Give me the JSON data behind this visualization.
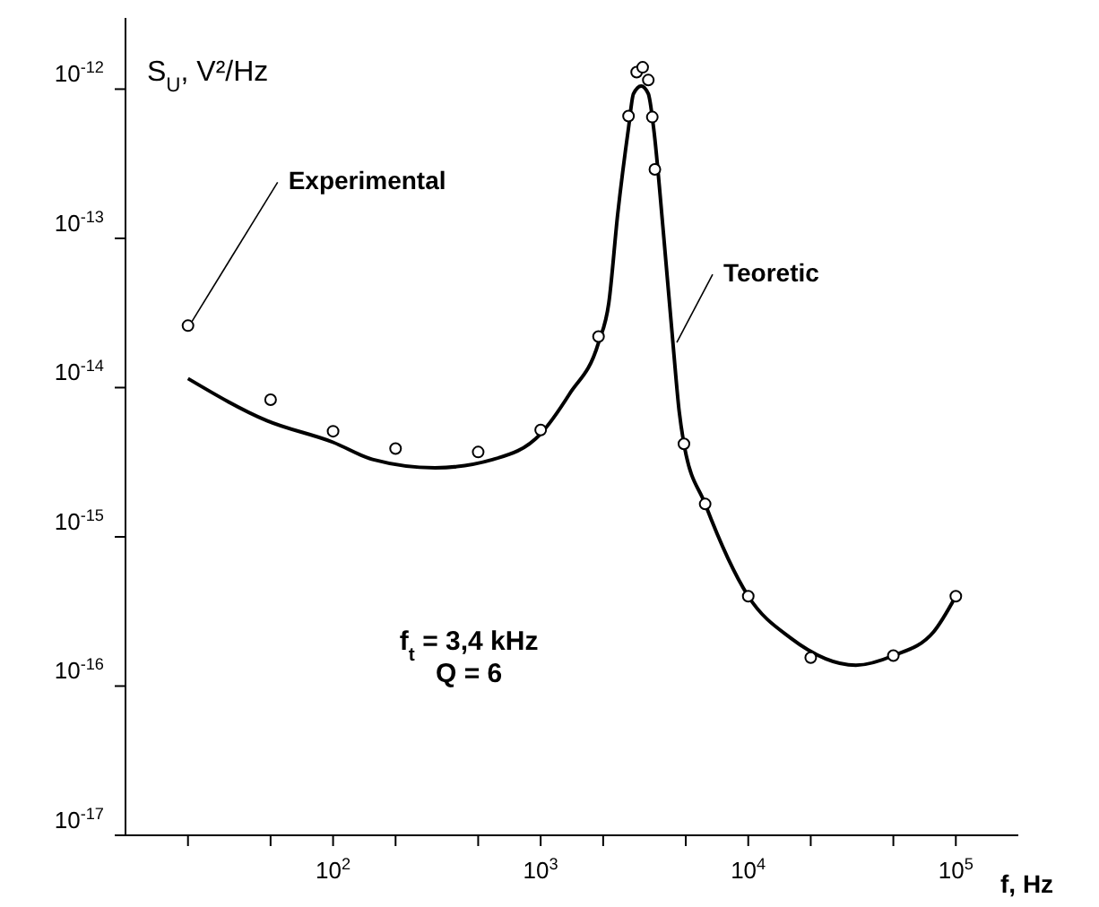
{
  "chart_data": {
    "type": "line",
    "ylabel": "S$_{U}$, V²/Hz",
    "xlabel": "f, Hz",
    "log": "xy",
    "xlim": [
      10,
      200000
    ],
    "ylim": [
      1e-17,
      3e-12
    ],
    "xticks": [
      {
        "value": 20,
        "label": null
      },
      {
        "value": 50,
        "label": null
      },
      {
        "value": 100,
        "label": "10$^{2}$"
      },
      {
        "value": 200,
        "label": null
      },
      {
        "value": 500,
        "label": null
      },
      {
        "value": 1000,
        "label": "10$^{3}$"
      },
      {
        "value": 2000,
        "label": null
      },
      {
        "value": 5000,
        "label": null
      },
      {
        "value": 10000,
        "label": "10$^{4}$"
      },
      {
        "value": 20000,
        "label": null
      },
      {
        "value": 50000,
        "label": null
      },
      {
        "value": 100000,
        "label": "10$^{5}$"
      }
    ],
    "yticks": [
      {
        "value": 1e-17,
        "label": "10$^{-17}$"
      },
      {
        "value": 1e-16,
        "label": "10$^{-16}$"
      },
      {
        "value": 1e-15,
        "label": "10$^{-15}$"
      },
      {
        "value": 1e-14,
        "label": "10$^{-14}$"
      },
      {
        "value": 1e-13,
        "label": "10$^{-13}$"
      },
      {
        "value": 1e-12,
        "label": "10$^{-12}$"
      }
    ],
    "series": [
      {
        "name": "Experimental",
        "type": "scatter",
        "marker": "circle",
        "color": "#000000",
        "x": [
          20,
          50,
          100,
          200,
          500,
          1000,
          1900,
          2650,
          2900,
          3100,
          3300,
          3450,
          3550,
          4900,
          6200,
          10000,
          20000,
          50000,
          100000
        ],
        "values": [
          2.6e-14,
          8.3e-15,
          5.1e-15,
          3.9e-15,
          3.7e-15,
          5.2e-15,
          2.2e-14,
          6.6e-13,
          1.3e-12,
          1.4e-12,
          1.15e-12,
          6.5e-13,
          2.9e-13,
          4.2e-15,
          1.66e-15,
          4e-16,
          1.55e-16,
          1.6e-16,
          4e-16
        ]
      },
      {
        "name": "Teoretic",
        "marker": "none",
        "line_style": "solid",
        "color": "#000000",
        "x": [
          20,
          48,
          100,
          155,
          310,
          590,
          1000,
          1380,
          1900,
          2130,
          2350,
          2650,
          2800,
          3050,
          3300,
          3500,
          3900,
          4350,
          4650,
          4900,
          6200,
          10000,
          16000,
          33000,
          50000,
          78000,
          100000
        ],
        "values": [
          1.15e-14,
          6e-15,
          4.3e-15,
          3.3e-15,
          2.9e-15,
          3.3e-15,
          4.9e-15,
          9.1e-15,
          2e-14,
          3.7e-14,
          1.45e-13,
          5.5e-13,
          9.3e-13,
          1.05e-12,
          9.3e-13,
          5.5e-13,
          1.1e-13,
          1.9e-14,
          6.9e-15,
          4.2e-15,
          1.66e-15,
          4e-16,
          2.1e-16,
          1.38e-16,
          1.6e-16,
          2.3e-16,
          4e-16
        ]
      }
    ],
    "annotations": [
      "f$_{t}$ = 3,4 kHz",
      "Q = 6"
    ]
  }
}
